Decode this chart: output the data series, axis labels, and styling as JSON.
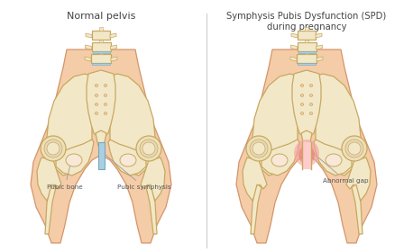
{
  "bg_color": "#fce8dc",
  "bone_fill": "#f2e8c8",
  "bone_fill2": "#ede0b8",
  "bone_edge": "#c8a860",
  "cartilage_fill": "#a8d0e0",
  "cartilage_edge": "#78a8c0",
  "skin_fill": "#f5cca8",
  "skin_fill2": "#f0c098",
  "skin_edge": "#d4956a",
  "inflammation_fill": "#e87070",
  "inflammation_fill2": "#f5a0a0",
  "text_color": "#444444",
  "label_color": "#555555",
  "line_color": "#888888",
  "title_left": "Normal pelvis",
  "title_right": "Symphysis Pubis Dysfunction (SPD)\nduring pregnancy",
  "label_pubic_bone": "Pubic bone",
  "label_pubic_symphysis": "Pubic symphysis",
  "label_abnormal_gap": "Abnormal gap",
  "white_bg": "#ffffff",
  "divider_color": "#cccccc"
}
